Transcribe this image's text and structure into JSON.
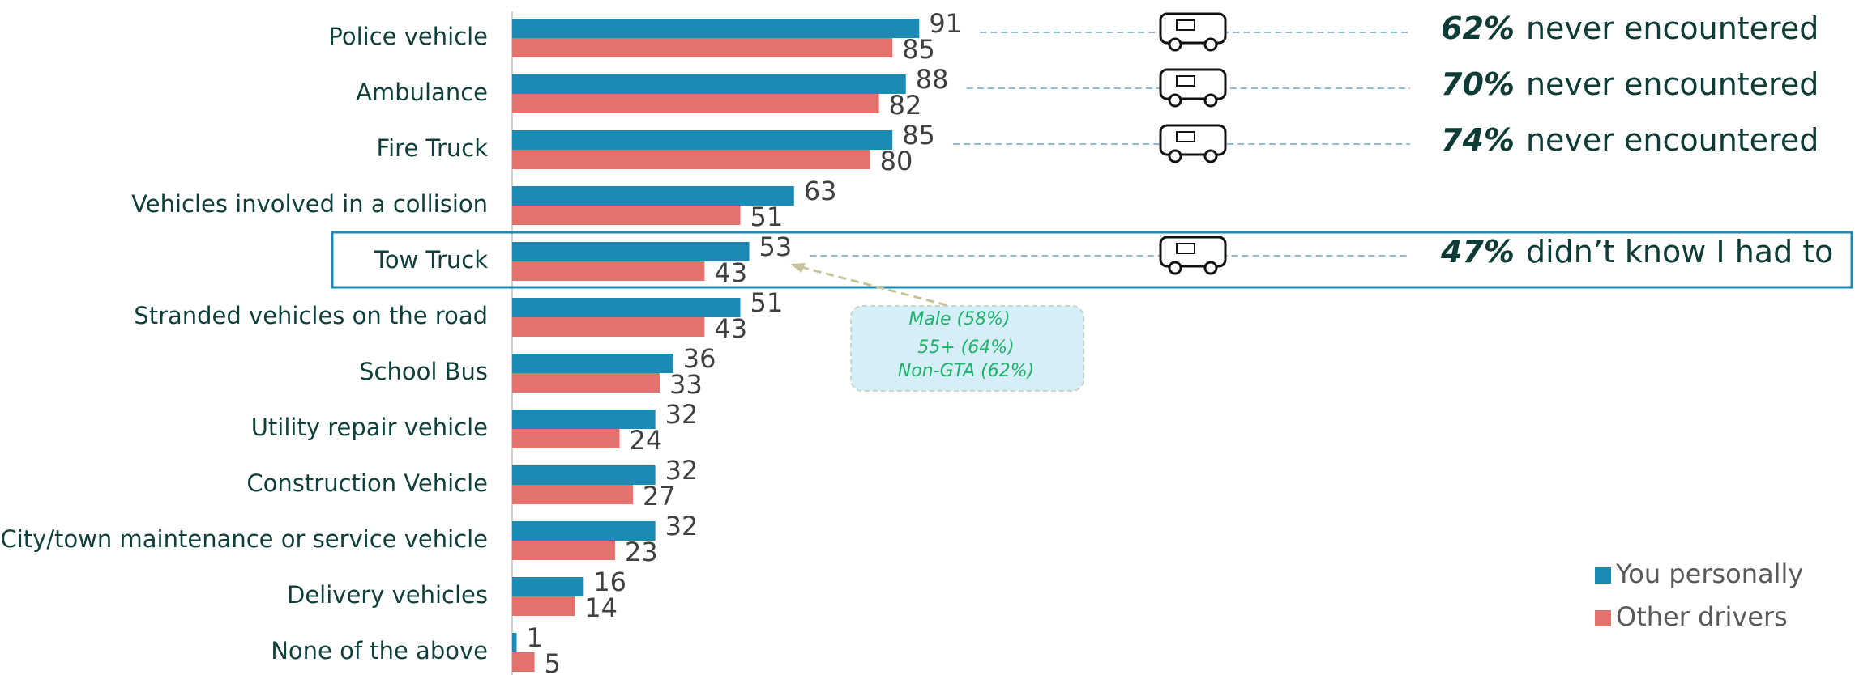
{
  "chart_data": {
    "type": "bar",
    "orientation": "horizontal",
    "categories": [
      "Police vehicle",
      "Ambulance",
      "Fire Truck",
      "Vehicles involved in a collision",
      "Tow Truck",
      "Stranded vehicles on the road",
      "School Bus",
      "Utility repair vehicle",
      "Construction Vehicle",
      "City/town maintenance or service vehicle",
      "Delivery vehicles",
      "None of the above"
    ],
    "series": [
      {
        "name": "You personally",
        "color": "#1b8ab5",
        "values": [
          91,
          88,
          85,
          63,
          53,
          51,
          36,
          32,
          32,
          32,
          16,
          1
        ]
      },
      {
        "name": "Other drivers",
        "color": "#e5716d",
        "values": [
          85,
          82,
          80,
          51,
          43,
          43,
          33,
          24,
          27,
          23,
          14,
          5
        ]
      }
    ],
    "xlim": [
      0,
      100
    ],
    "legend": "lower right",
    "annotations": [
      {
        "emphasis": "62%",
        "text": "never encountered"
      },
      {
        "emphasis": "70%",
        "text": "never encountered"
      },
      {
        "emphasis": "74%",
        "text": "never encountered"
      },
      {
        "emphasis": "47%",
        "text": "didn’t know I had to"
      }
    ],
    "callout": [
      "Male (58%)",
      "55+ (64%)",
      "Non-GTA (62%)"
    ]
  }
}
